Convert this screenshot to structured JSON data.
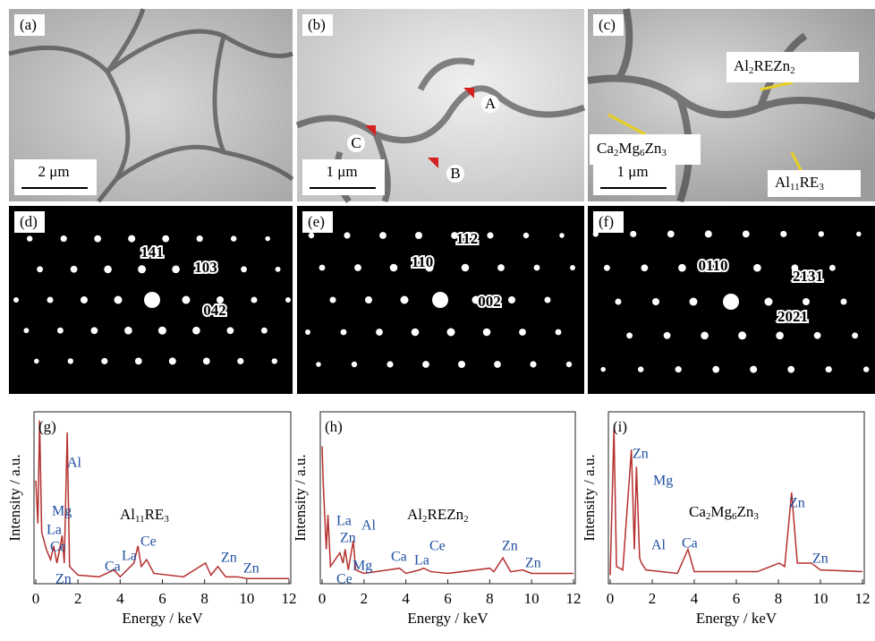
{
  "panels": {
    "micrographs": [
      {
        "label": "(a)",
        "scale": "2 μm"
      },
      {
        "label": "(b)",
        "scale": "1 μm",
        "markers": [
          "A",
          "B",
          "C"
        ]
      },
      {
        "label": "(c)",
        "scale": "1 μm",
        "phases": [
          [
            "Al",
            "2",
            "REZn",
            "2"
          ],
          [
            "Ca",
            "2",
            "Mg",
            "6",
            "Zn",
            "3"
          ],
          [
            "Al",
            "11",
            "RE",
            "3"
          ]
        ]
      }
    ],
    "diffraction": [
      {
        "label": "(d)",
        "indices": [
          "141",
          "103",
          "042"
        ]
      },
      {
        "label": "(e)",
        "indices": [
          "112",
          "110",
          "002"
        ]
      },
      {
        "label": "(f)",
        "indices": [
          "0110",
          "2131",
          "2021"
        ]
      }
    ]
  },
  "chart_data": [
    {
      "type": "line",
      "label": "(g)",
      "phase": [
        "Al",
        "11",
        "RE",
        "3"
      ],
      "color": "#b5302f",
      "xlabel": "Energy / keV",
      "ylabel": "Intensity / a.u.",
      "peak_labels": [
        "Al",
        "Mg",
        "La",
        "Ce",
        "Zn",
        "Ca",
        "La",
        "Ce",
        "Zn",
        "Zn"
      ],
      "x": [
        0,
        0.1,
        0.18,
        0.28,
        0.5,
        0.7,
        0.85,
        1.0,
        1.1,
        1.25,
        1.35,
        1.49,
        1.6,
        2,
        3,
        3.7,
        4,
        4.65,
        4.84,
        5.0,
        5.25,
        5.6,
        7,
        8.04,
        8.3,
        8.63,
        9,
        9.57,
        10,
        12
      ],
      "values": [
        60,
        35,
        95,
        30,
        20,
        14,
        22,
        12,
        18,
        28,
        12,
        88,
        10,
        5,
        4,
        8,
        4,
        12,
        22,
        10,
        14,
        6,
        4,
        12,
        5,
        10,
        4,
        4,
        3,
        3
      ],
      "xlim": [
        0,
        12
      ],
      "xticks": [
        0,
        2,
        4,
        6,
        8,
        10,
        12
      ],
      "ylim": [
        0,
        100
      ]
    },
    {
      "type": "line",
      "label": "(h)",
      "phase": [
        "Al",
        "2",
        "REZn",
        "2"
      ],
      "color": "#b5302f",
      "xlabel": "Energy / keV",
      "ylabel": "Intensity / a.u.",
      "peak_labels": [
        "La",
        "Zn",
        "Al",
        "Mg",
        "Ce",
        "Ca",
        "La",
        "Ce",
        "Zn",
        "Zn"
      ],
      "x": [
        0,
        0.05,
        0.2,
        0.28,
        0.4,
        0.85,
        1.0,
        1.1,
        1.25,
        1.49,
        1.6,
        2,
        3.7,
        4,
        4.65,
        4.84,
        5.2,
        6,
        8,
        8.2,
        8.63,
        9,
        9.57,
        10,
        12
      ],
      "values": [
        80,
        60,
        20,
        40,
        10,
        18,
        12,
        20,
        8,
        25,
        8,
        6,
        9,
        6,
        8,
        9,
        7,
        6,
        9,
        7,
        15,
        7,
        8,
        6,
        6
      ],
      "xlim": [
        0,
        12
      ],
      "xticks": [
        0,
        2,
        4,
        6,
        8,
        10,
        12
      ],
      "ylim": [
        0,
        100
      ]
    },
    {
      "type": "line",
      "label": "(i)",
      "phase": [
        "Ca",
        "2",
        "Mg",
        "6",
        "Zn",
        "3"
      ],
      "color": "#b5302f",
      "xlabel": "Energy / keV",
      "ylabel": "Intensity / a.u.",
      "peak_labels": [
        "Zn",
        "Mg",
        "Al",
        "Ca",
        "Zn",
        "Zn"
      ],
      "x": [
        0,
        0.18,
        0.3,
        0.6,
        1.01,
        1.15,
        1.25,
        1.4,
        1.49,
        1.7,
        3.2,
        3.7,
        4,
        5.4,
        7,
        8.04,
        8.3,
        8.63,
        8.9,
        9.57,
        10,
        12
      ],
      "values": [
        5,
        90,
        10,
        8,
        78,
        20,
        68,
        15,
        12,
        8,
        6,
        20,
        7,
        7,
        7,
        12,
        10,
        53,
        12,
        12,
        8,
        7
      ],
      "xlim": [
        0,
        12
      ],
      "xticks": [
        0,
        2,
        4,
        6,
        8,
        10,
        12
      ],
      "ylim": [
        0,
        100
      ]
    }
  ]
}
